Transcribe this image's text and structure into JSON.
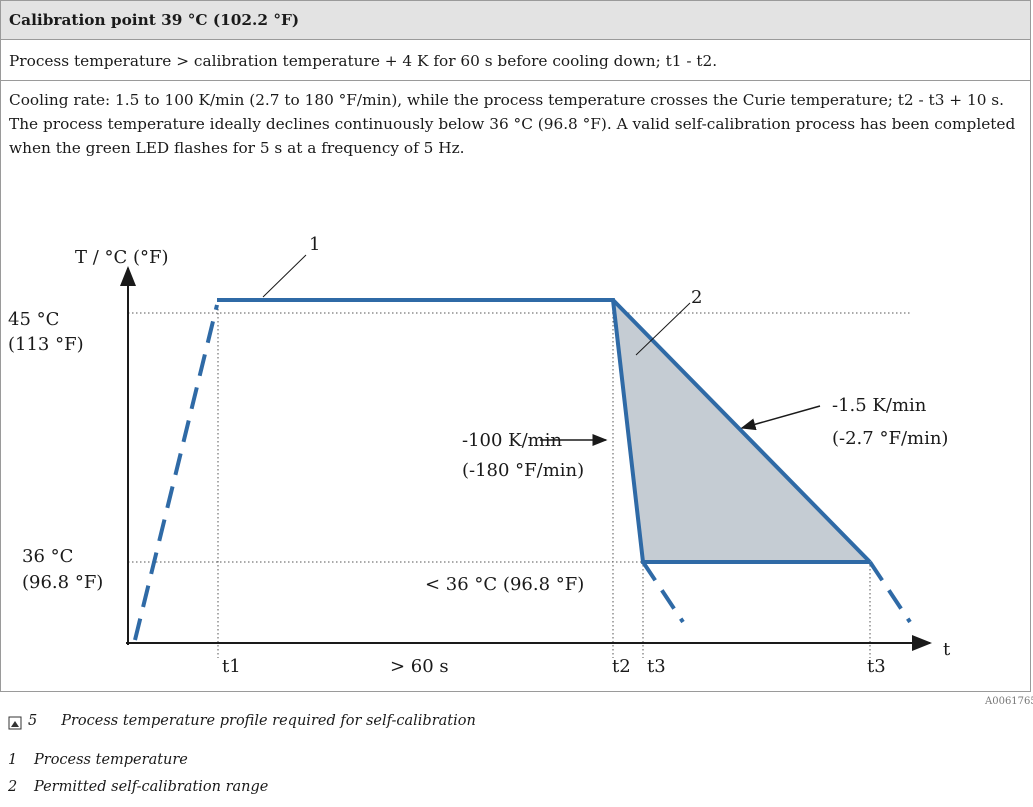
{
  "table": {
    "header": "Calibration point 39 °C (102.2 °F)",
    "rows": [
      [
        "Process temperature > calibration temperature + 4 K for 60 s before cooling down; t1 - t2."
      ],
      [
        "Cooling rate: 1.5 to 100 K/min (2.7 to 180 °F/min), while the process temperature crosses the Curie temperature; t2 - t3 + 10 s.",
        "The process temperature ideally declines continuously below 36 °C (96.8 °F). A valid self-calibration process has been completed when the green LED flashes for 5 s at a frequency of 5 Hz."
      ]
    ]
  },
  "diagram": {
    "y_axis_label": "T / °C (°F)",
    "x_axis_label": "t",
    "upper_level": [
      "45 °C",
      "(113 °F)"
    ],
    "lower_level": [
      "36 °C",
      "(96.8 °F)"
    ],
    "callouts": [
      "1",
      "2"
    ],
    "time_marks": [
      "t1",
      "> 60 s",
      "t2",
      "t3",
      "t3"
    ],
    "fast_rate": [
      "-100 K/min",
      "(-180 °F/min)"
    ],
    "slow_rate": [
      "-1.5 K/min",
      "(-2.7 °F/min)"
    ],
    "below_label": "< 36 °C (96.8 °F)",
    "figure_id": "A0061765"
  },
  "caption": {
    "number": "5",
    "text": "Process temperature profile required for self-calibration"
  },
  "legend": [
    {
      "number": "1",
      "text": "Process temperature"
    },
    {
      "number": "2",
      "text": "Permitted self-calibration range"
    }
  ]
}
